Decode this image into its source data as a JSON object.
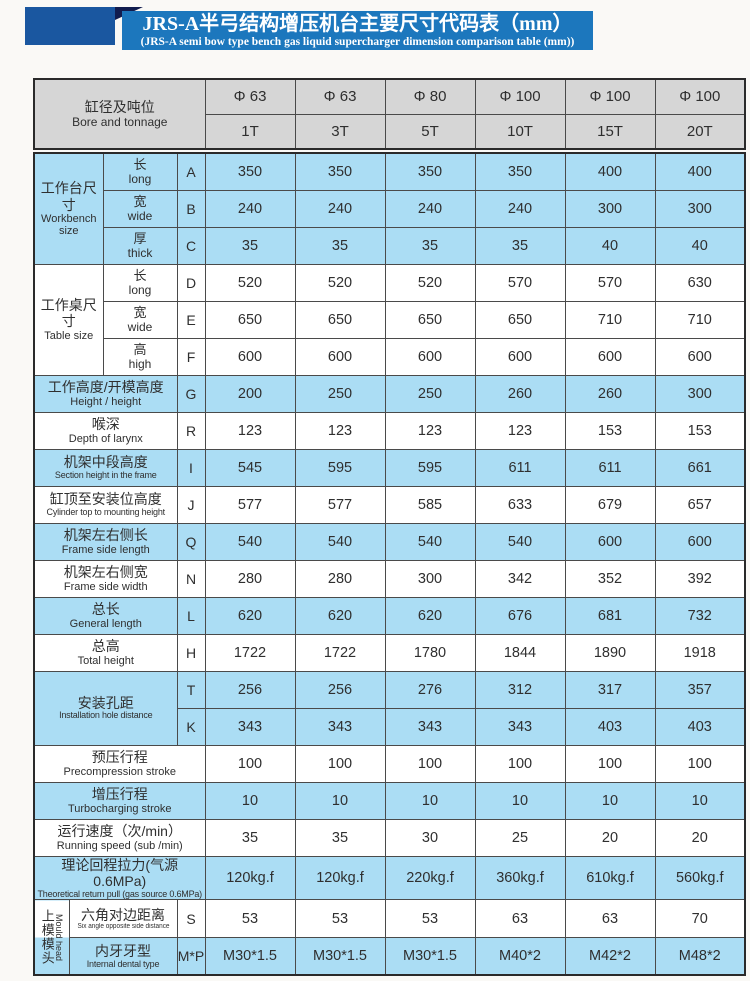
{
  "title": {
    "zh": "JRS-A半弓结构增压机台主要尺寸代码表（mm）",
    "en": "(JRS-A semi bow type bench gas liquid supercharger dimension comparison table (mm))"
  },
  "colors": {
    "banner_blue": "#1c77bd",
    "corner_square_navy": "#1a57a0",
    "fold_dark_navy": "#111c4e",
    "header_gray": "#d6d6d6",
    "row_blue": "#abddf4",
    "row_white": "#ffffff",
    "border": "#4a4a4a"
  },
  "table": {
    "header": {
      "label_zh": "缸径及吨位",
      "label_en": "Bore and tonnage",
      "diameters": [
        "Φ 63",
        "Φ 63",
        "Φ 80",
        "Φ 100",
        "Φ 100",
        "Φ 100"
      ],
      "tonnages": [
        "1T",
        "3T",
        "5T",
        "10T",
        "15T",
        "20T"
      ]
    },
    "rows": [
      {
        "shade": "b",
        "group": {
          "zh": "工作台尺寸",
          "en": "Workbench size",
          "cs": 2,
          "rs": 3,
          "name": "group-workbench-size"
        },
        "label": {
          "zh": "长",
          "en": "long",
          "cls": "sub"
        },
        "code": "A",
        "values": [
          "350",
          "350",
          "350",
          "350",
          "400",
          "400"
        ]
      },
      {
        "shade": "b",
        "label": {
          "zh": "宽",
          "en": "wide",
          "cls": "sub"
        },
        "code": "B",
        "values": [
          "240",
          "240",
          "240",
          "240",
          "300",
          "300"
        ]
      },
      {
        "shade": "b",
        "label": {
          "zh": "厚",
          "en": "thick",
          "cls": "sub"
        },
        "code": "C",
        "values": [
          "35",
          "35",
          "35",
          "35",
          "40",
          "40"
        ]
      },
      {
        "shade": "w",
        "group": {
          "zh": "工作桌尺寸",
          "en": "Table size",
          "cs": 2,
          "rs": 3,
          "name": "group-table-size"
        },
        "label": {
          "zh": "长",
          "en": "long",
          "cls": "sub"
        },
        "code": "D",
        "values": [
          "520",
          "520",
          "520",
          "570",
          "570",
          "630"
        ]
      },
      {
        "shade": "w",
        "label": {
          "zh": "宽",
          "en": "wide",
          "cls": "sub"
        },
        "code": "E",
        "values": [
          "650",
          "650",
          "650",
          "650",
          "710",
          "710"
        ]
      },
      {
        "shade": "w",
        "label": {
          "zh": "高",
          "en": "high",
          "cls": "sub"
        },
        "code": "F",
        "values": [
          "600",
          "600",
          "600",
          "600",
          "600",
          "600"
        ]
      },
      {
        "shade": "b",
        "label": {
          "zh": "工作高度/开模高度",
          "en": "Height / height",
          "cs": 3
        },
        "code": "G",
        "values": [
          "200",
          "250",
          "250",
          "260",
          "260",
          "300"
        ]
      },
      {
        "shade": "w",
        "label": {
          "zh": "喉深",
          "en": "Depth of larynx",
          "cs": 3
        },
        "code": "R",
        "values": [
          "123",
          "123",
          "123",
          "123",
          "153",
          "153"
        ]
      },
      {
        "shade": "b",
        "label": {
          "zh": "机架中段高度",
          "en": "Section height in the frame",
          "cs": 3,
          "small": true
        },
        "code": "I",
        "values": [
          "545",
          "595",
          "595",
          "611",
          "611",
          "661"
        ]
      },
      {
        "shade": "w",
        "label": {
          "zh": "缸顶至安装位高度",
          "en": "Cylinder top to mounting height",
          "cs": 3,
          "small": true
        },
        "code": "J",
        "values": [
          "577",
          "577",
          "585",
          "633",
          "679",
          "657"
        ]
      },
      {
        "shade": "b",
        "label": {
          "zh": "机架左右侧长",
          "en": "Frame side length",
          "cs": 3
        },
        "code": "Q",
        "values": [
          "540",
          "540",
          "540",
          "540",
          "600",
          "600"
        ]
      },
      {
        "shade": "w",
        "label": {
          "zh": "机架左右侧宽",
          "en": "Frame side width",
          "cs": 3
        },
        "code": "N",
        "values": [
          "280",
          "280",
          "300",
          "342",
          "352",
          "392"
        ]
      },
      {
        "shade": "b",
        "label": {
          "zh": "总长",
          "en": "General length",
          "cs": 3
        },
        "code": "L",
        "values": [
          "620",
          "620",
          "620",
          "676",
          "681",
          "732"
        ]
      },
      {
        "shade": "w",
        "label": {
          "zh": "总高",
          "en": "Total height",
          "cs": 3
        },
        "code": "H",
        "values": [
          "1722",
          "1722",
          "1780",
          "1844",
          "1890",
          "1918"
        ]
      },
      {
        "shade": "b",
        "group": {
          "zh": "安装孔距",
          "en": "Installation hole distance",
          "cs": 3,
          "rs": 2,
          "name": "group-installation-hole-distance",
          "small": true
        },
        "code": "T",
        "values": [
          "256",
          "256",
          "276",
          "312",
          "317",
          "357"
        ]
      },
      {
        "shade": "b",
        "code": "K",
        "values": [
          "343",
          "343",
          "343",
          "343",
          "403",
          "403"
        ]
      },
      {
        "shade": "w",
        "label": {
          "zh": "预压行程",
          "en": "Precompression stroke",
          "cs": 4
        },
        "values": [
          "100",
          "100",
          "100",
          "100",
          "100",
          "100"
        ]
      },
      {
        "shade": "b",
        "label": {
          "zh": "增压行程",
          "en": "Turbocharging stroke",
          "cs": 4
        },
        "values": [
          "10",
          "10",
          "10",
          "10",
          "10",
          "10"
        ]
      },
      {
        "shade": "w",
        "label": {
          "zh": "运行速度（次/min）",
          "en": "Running speed (sub /min)",
          "cs": 4
        },
        "values": [
          "35",
          "35",
          "30",
          "25",
          "20",
          "20"
        ]
      },
      {
        "shade": "b",
        "label": {
          "zh": "理论回程拉力(气源0.6MPa)",
          "en": "Theoretical return pull (gas source 0.6MPa)",
          "cs": 4,
          "small": true
        },
        "values": [
          "120kg.f",
          "120kg.f",
          "220kg.f",
          "360kg.f",
          "610kg.f",
          "560kg.f"
        ]
      },
      {
        "shade": "w",
        "vgroup": {
          "zh": "上模模头",
          "en": "Mould head",
          "rs": 2,
          "name": "group-mould-head"
        },
        "label": {
          "zh": "六角对边距离",
          "en": "Six angle opposite side distance",
          "cs": 2,
          "xsmall": true
        },
        "code": "S",
        "values": [
          "53",
          "53",
          "53",
          "63",
          "63",
          "70"
        ]
      },
      {
        "shade": "b",
        "label": {
          "zh": "内牙牙型",
          "en": "Internal dental type",
          "cs": 2,
          "small": true
        },
        "code": "M*P",
        "values": [
          "M30*1.5",
          "M30*1.5",
          "M30*1.5",
          "M40*2",
          "M42*2",
          "M48*2"
        ]
      }
    ]
  }
}
